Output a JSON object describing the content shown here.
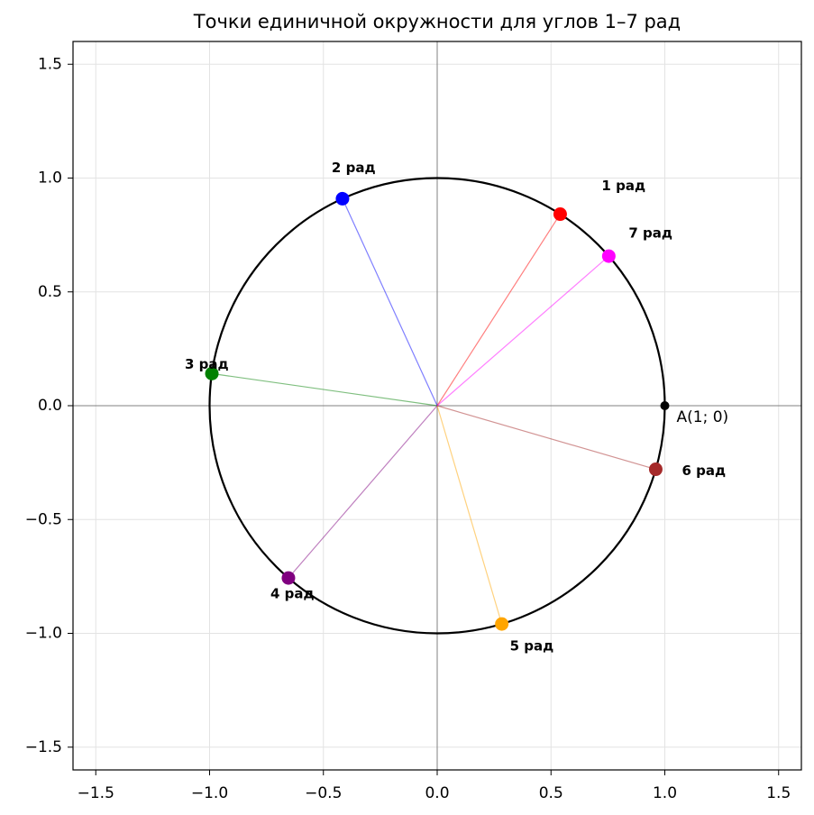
{
  "chart_data": {
    "type": "scatter",
    "title": "Точки единичной окружности для углов 1–7 рад",
    "xlim": [
      -1.6,
      1.6
    ],
    "ylim": [
      -1.6,
      1.6
    ],
    "xticks": [
      {
        "value": -1.5,
        "label": "−1.5"
      },
      {
        "value": -1.0,
        "label": "−1.0"
      },
      {
        "value": -0.5,
        "label": "−0.5"
      },
      {
        "value": 0,
        "label": "0.0"
      },
      0.5,
      {
        "value": 1,
        "label": "1.0"
      },
      1.5
    ],
    "yticks": [
      {
        "value": -1.5,
        "label": "−1.5"
      },
      {
        "value": -1.0,
        "label": "−1.0"
      },
      {
        "value": -0.5,
        "label": "−0.5"
      },
      {
        "value": 0,
        "label": "0.0"
      },
      0.5,
      {
        "value": 1,
        "label": "1.0"
      },
      1.5
    ],
    "grid": true,
    "circle": {
      "radius": 1,
      "color": "#000000"
    },
    "series": [
      {
        "name": "1 рад",
        "color": "#ff0000",
        "x": [
          0.5403
        ],
        "y": [
          0.8415
        ]
      },
      {
        "name": "2 рад",
        "color": "#0000ff",
        "x": [
          -0.4161
        ],
        "y": [
          0.9093
        ]
      },
      {
        "name": "3 рад",
        "color": "#008000",
        "x": [
          -0.99
        ],
        "y": [
          0.1411
        ]
      },
      {
        "name": "4 рад",
        "color": "#800080",
        "x": [
          -0.6536
        ],
        "y": [
          -0.7568
        ]
      },
      {
        "name": "5 рад",
        "color": "#ffa500",
        "x": [
          0.2837
        ],
        "y": [
          -0.9589
        ]
      },
      {
        "name": "6 рад",
        "color": "#a52a2a",
        "x": [
          0.9602
        ],
        "y": [
          -0.2794
        ]
      },
      {
        "name": "7 рад",
        "color": "#ff00ff",
        "x": [
          0.7539
        ],
        "y": [
          0.657
        ]
      },
      {
        "name": "A(1; 0)",
        "color": "#000000",
        "x": [
          1
        ],
        "y": [
          0
        ]
      }
    ]
  }
}
